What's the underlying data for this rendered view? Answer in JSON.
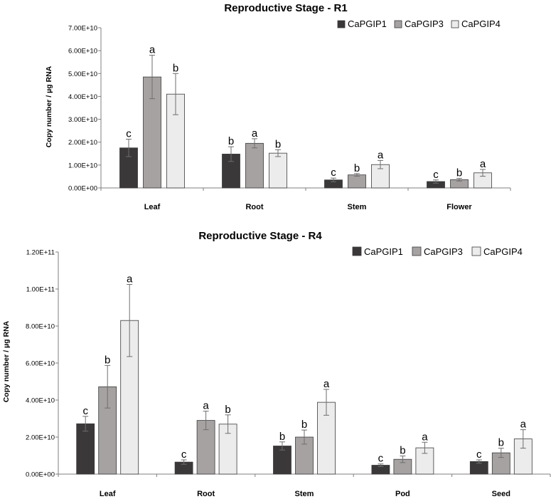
{
  "chart_data": [
    {
      "type": "bar",
      "title": "Reproductive Stage - R1",
      "xlabel": "",
      "ylabel": "Copy number / µg RNA",
      "ylim": [
        0,
        70000000000
      ],
      "yticks": [
        "0.00E+00",
        "1.00E+10",
        "2.00E+10",
        "3.00E+10",
        "4.00E+10",
        "5.00E+10",
        "6.00E+10",
        "7.00E+10"
      ],
      "categories": [
        "Leaf",
        "Root",
        "Stem",
        "Flower"
      ],
      "legend_position": "top-right",
      "series": [
        {
          "name": "CaPGIP1",
          "color": "#3a3838",
          "values": [
            17500000000,
            14800000000,
            3500000000,
            2800000000
          ],
          "errors": [
            3800000000,
            3200000000,
            800000000,
            700000000
          ],
          "letters": [
            "c",
            "b",
            "c",
            "c"
          ]
        },
        {
          "name": "CaPGIP3",
          "color": "#a6a2a2",
          "values": [
            48500000000,
            19500000000,
            5700000000,
            3600000000
          ],
          "errors": [
            9500000000,
            2000000000,
            600000000,
            600000000
          ],
          "letters": [
            "a",
            "a",
            "b",
            "b"
          ]
        },
        {
          "name": "CaPGIP4",
          "color": "#ececec",
          "values": [
            41000000000,
            15200000000,
            10200000000,
            6600000000
          ],
          "errors": [
            9000000000,
            1500000000,
            1800000000,
            1500000000
          ],
          "letters": [
            "b",
            "b",
            "a",
            "a"
          ]
        }
      ]
    },
    {
      "type": "bar",
      "title": "Reproductive Stage - R4",
      "xlabel": "",
      "ylabel": "Copy number / µg RNA",
      "ylim": [
        0,
        120000000000
      ],
      "yticks": [
        "0.00E+00",
        "2.00E+10",
        "4.00E+10",
        "6.00E+10",
        "8.00E+10",
        "1.00E+11",
        "1.20E+11"
      ],
      "categories": [
        "Leaf",
        "Root",
        "Stem",
        "Pod",
        "Seed"
      ],
      "legend_position": "top-right",
      "series": [
        {
          "name": "CaPGIP1",
          "color": "#3a3838",
          "values": [
            27200000000,
            6500000000,
            15200000000,
            4800000000,
            6800000000
          ],
          "errors": [
            4000000000,
            1200000000,
            2200000000,
            700000000,
            900000000
          ],
          "letters": [
            "c",
            "c",
            "b",
            "c",
            "c"
          ]
        },
        {
          "name": "CaPGIP3",
          "color": "#a6a2a2",
          "values": [
            47200000000,
            29000000000,
            20000000000,
            8000000000,
            11500000000
          ],
          "errors": [
            11500000000,
            5000000000,
            3800000000,
            1800000000,
            2500000000
          ],
          "letters": [
            "b",
            "a",
            "b",
            "b",
            "b"
          ]
        },
        {
          "name": "CaPGIP4",
          "color": "#ececec",
          "values": [
            83000000000,
            27000000000,
            38800000000,
            14200000000,
            19000000000
          ],
          "errors": [
            19500000000,
            5000000000,
            7000000000,
            3000000000,
            5000000000
          ],
          "letters": [
            "a",
            "b",
            "a",
            "a",
            "a"
          ]
        }
      ]
    }
  ]
}
